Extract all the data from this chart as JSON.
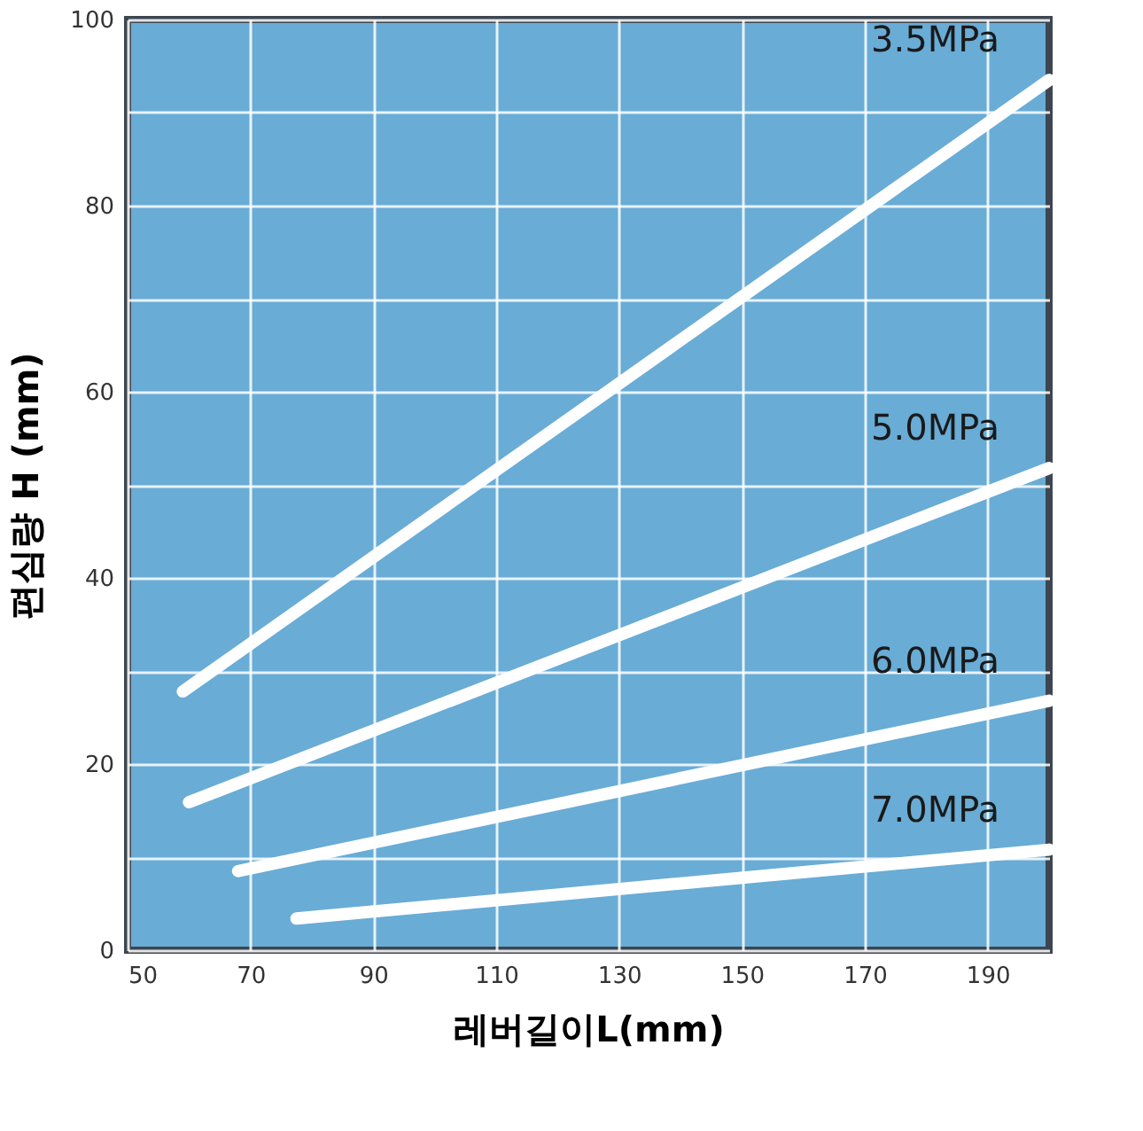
{
  "chart_data": {
    "type": "line",
    "xlabel": "레버길이L(mm)",
    "ylabel": "편심량 H (mm)",
    "xlim": [
      50,
      200
    ],
    "xticks": [
      50,
      70,
      90,
      110,
      130,
      150,
      170,
      190
    ],
    "ylim": [
      0,
      100
    ],
    "yticks": [
      0,
      {
        "value": 10,
        "label": null
      },
      20,
      {
        "value": 30,
        "label": null
      },
      40,
      {
        "value": 50,
        "label": null
      },
      60,
      {
        "value": 70,
        "label": null
      },
      80,
      {
        "value": 90,
        "label": null
      },
      100
    ],
    "grid": true,
    "legend": false,
    "line_style": "solid",
    "series": [
      {
        "name": "3.5MPa",
        "color": "#ffffff",
        "x": [
          59,
          200
        ],
        "values": [
          27.8,
          93.5
        ]
      },
      {
        "name": "5.0MPa",
        "color": "#ffffff",
        "x": [
          60,
          200
        ],
        "values": [
          15.9,
          51.8
        ]
      },
      {
        "name": "6.0MPa",
        "color": "#ffffff",
        "x": [
          68,
          200
        ],
        "values": [
          8.5,
          26.8
        ]
      },
      {
        "name": "7.0MPa",
        "color": "#ffffff",
        "x": [
          77.5,
          200
        ],
        "values": [
          3.4,
          10.8
        ]
      }
    ]
  }
}
